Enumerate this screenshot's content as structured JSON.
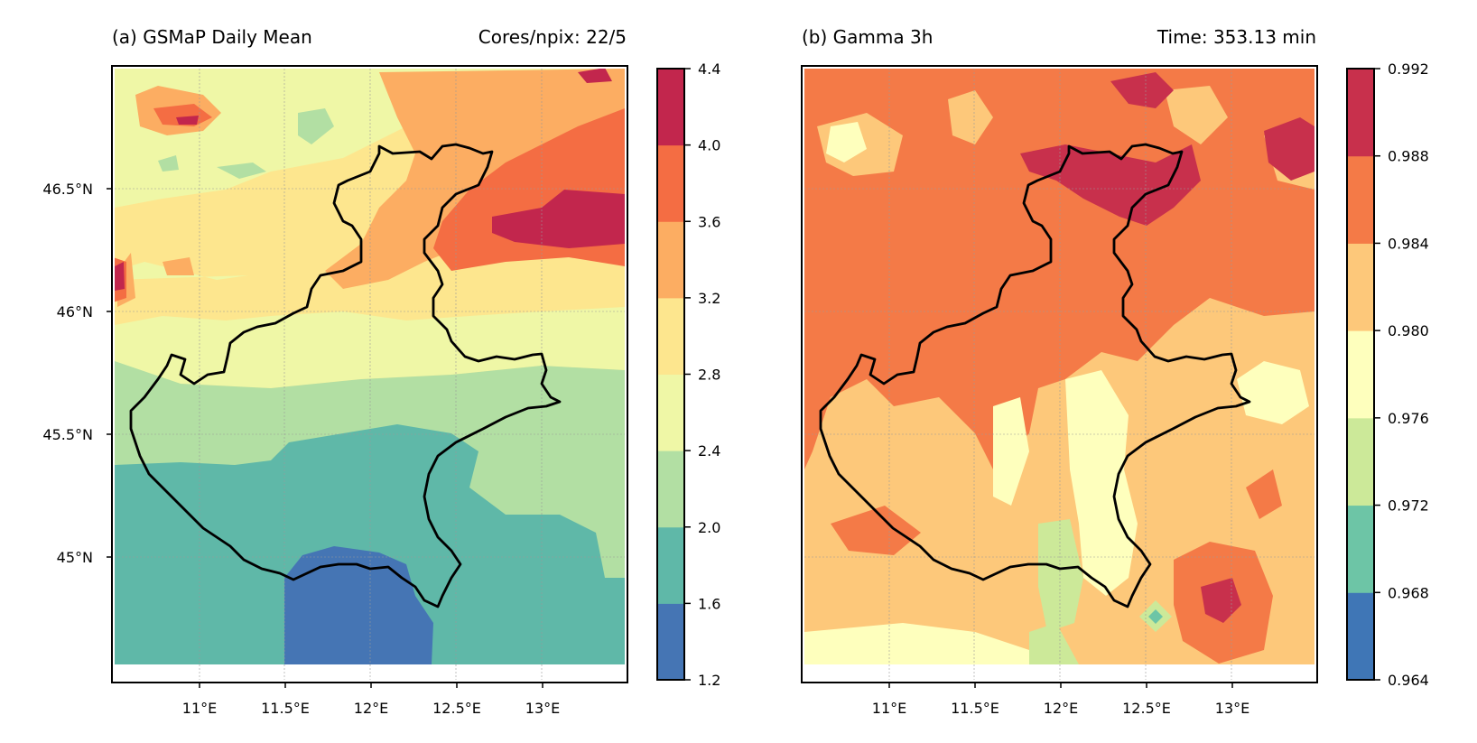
{
  "chart_data": [
    {
      "type": "heatmap",
      "title_left": "(a) GSMaP Daily Mean",
      "title_right": "Cores/npix: 22/5",
      "x_ticks": [
        "11°E",
        "11.5°E",
        "12°E",
        "12.5°E",
        "13°E"
      ],
      "x_tick_values": [
        11.0,
        11.5,
        12.0,
        12.5,
        13.0
      ],
      "y_ticks": [
        "46.5°N",
        "46°N",
        "45.5°N",
        "45°N"
      ],
      "y_tick_values": [
        46.5,
        46.0,
        45.5,
        45.0
      ],
      "xlim": [
        10.5,
        14.0
      ],
      "ylim": [
        44.5,
        47.0
      ],
      "grid": true,
      "colorbar": {
        "levels": [
          1.2,
          1.6,
          2.0,
          2.4,
          2.8,
          3.2,
          3.6,
          4.0,
          4.4
        ],
        "labels": [
          "1.2",
          "1.6",
          "2.0",
          "2.4",
          "2.8",
          "3.2",
          "3.6",
          "4.0",
          "4.4"
        ],
        "colors": [
          "#4575b4",
          "#5fb8a8",
          "#b2dfa3",
          "#eff7a6",
          "#fde68e",
          "#fcad62",
          "#f46d43",
          "#c2264d"
        ]
      }
    },
    {
      "type": "heatmap",
      "title_left": "(b) Gamma 3h",
      "title_right": "Time: 353.13 min",
      "x_ticks": [
        "11°E",
        "11.5°E",
        "12°E",
        "12.5°E",
        "13°E"
      ],
      "x_tick_values": [
        11.0,
        11.5,
        12.0,
        12.5,
        13.0
      ],
      "xlim": [
        10.5,
        14.0
      ],
      "ylim": [
        44.5,
        47.0
      ],
      "grid": true,
      "colorbar": {
        "levels": [
          0.964,
          0.968,
          0.972,
          0.976,
          0.98,
          0.984,
          0.988,
          0.992
        ],
        "labels": [
          "0.964",
          "0.968",
          "0.972",
          "0.976",
          "0.980",
          "0.984",
          "0.988",
          "0.992"
        ],
        "colors": [
          "#3f76b6",
          "#6dc5a6",
          "#cce999",
          "#feffbd",
          "#fdc87a",
          "#f47a47",
          "#c8304c"
        ]
      }
    }
  ]
}
